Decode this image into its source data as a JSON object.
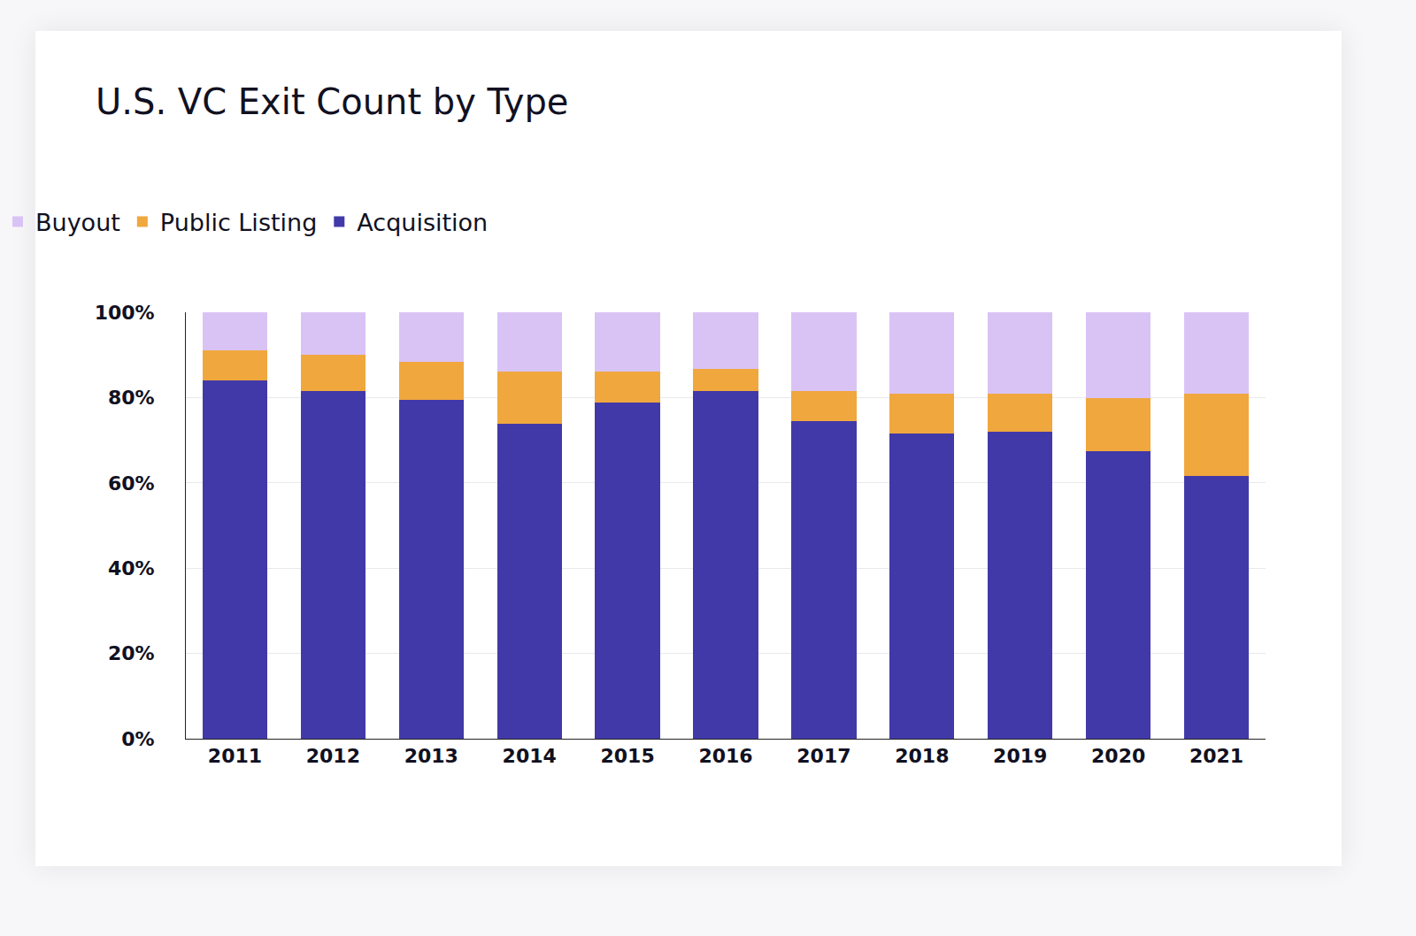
{
  "chart_data": {
    "type": "bar",
    "title": "U.S. VC Exit Count by Type",
    "categories": [
      "2011",
      "2012",
      "2013",
      "2014",
      "2015",
      "2016",
      "2017",
      "2018",
      "2019",
      "2020",
      "2021"
    ],
    "stacked": true,
    "grid": true,
    "legend": "top-left",
    "series": [
      {
        "name": "Acquisition",
        "color": "#4239a8",
        "values": [
          84.0,
          81.5,
          79.5,
          73.9,
          78.8,
          81.5,
          74.5,
          71.6,
          72.0,
          67.4,
          61.6
        ]
      },
      {
        "name": "Public Listing",
        "color": "#f0a73e",
        "values": [
          7.0,
          8.5,
          8.9,
          12.2,
          7.3,
          5.2,
          7.0,
          9.3,
          8.9,
          12.5,
          19.3
        ]
      },
      {
        "name": "Buyout",
        "color": "#d9c3f5",
        "values": [
          9.0,
          10.0,
          11.6,
          13.9,
          13.9,
          13.3,
          18.5,
          19.1,
          19.1,
          20.1,
          19.1
        ]
      }
    ],
    "ylim": [
      0,
      100
    ],
    "yticks": [
      {
        "value": 0,
        "label": "0%"
      },
      {
        "value": 20,
        "label": "20%"
      },
      {
        "value": 40,
        "label": "40%"
      },
      {
        "value": 60,
        "label": "60%"
      },
      {
        "value": 80,
        "label": "80%"
      },
      {
        "value": 100,
        "label": "100%"
      }
    ]
  }
}
